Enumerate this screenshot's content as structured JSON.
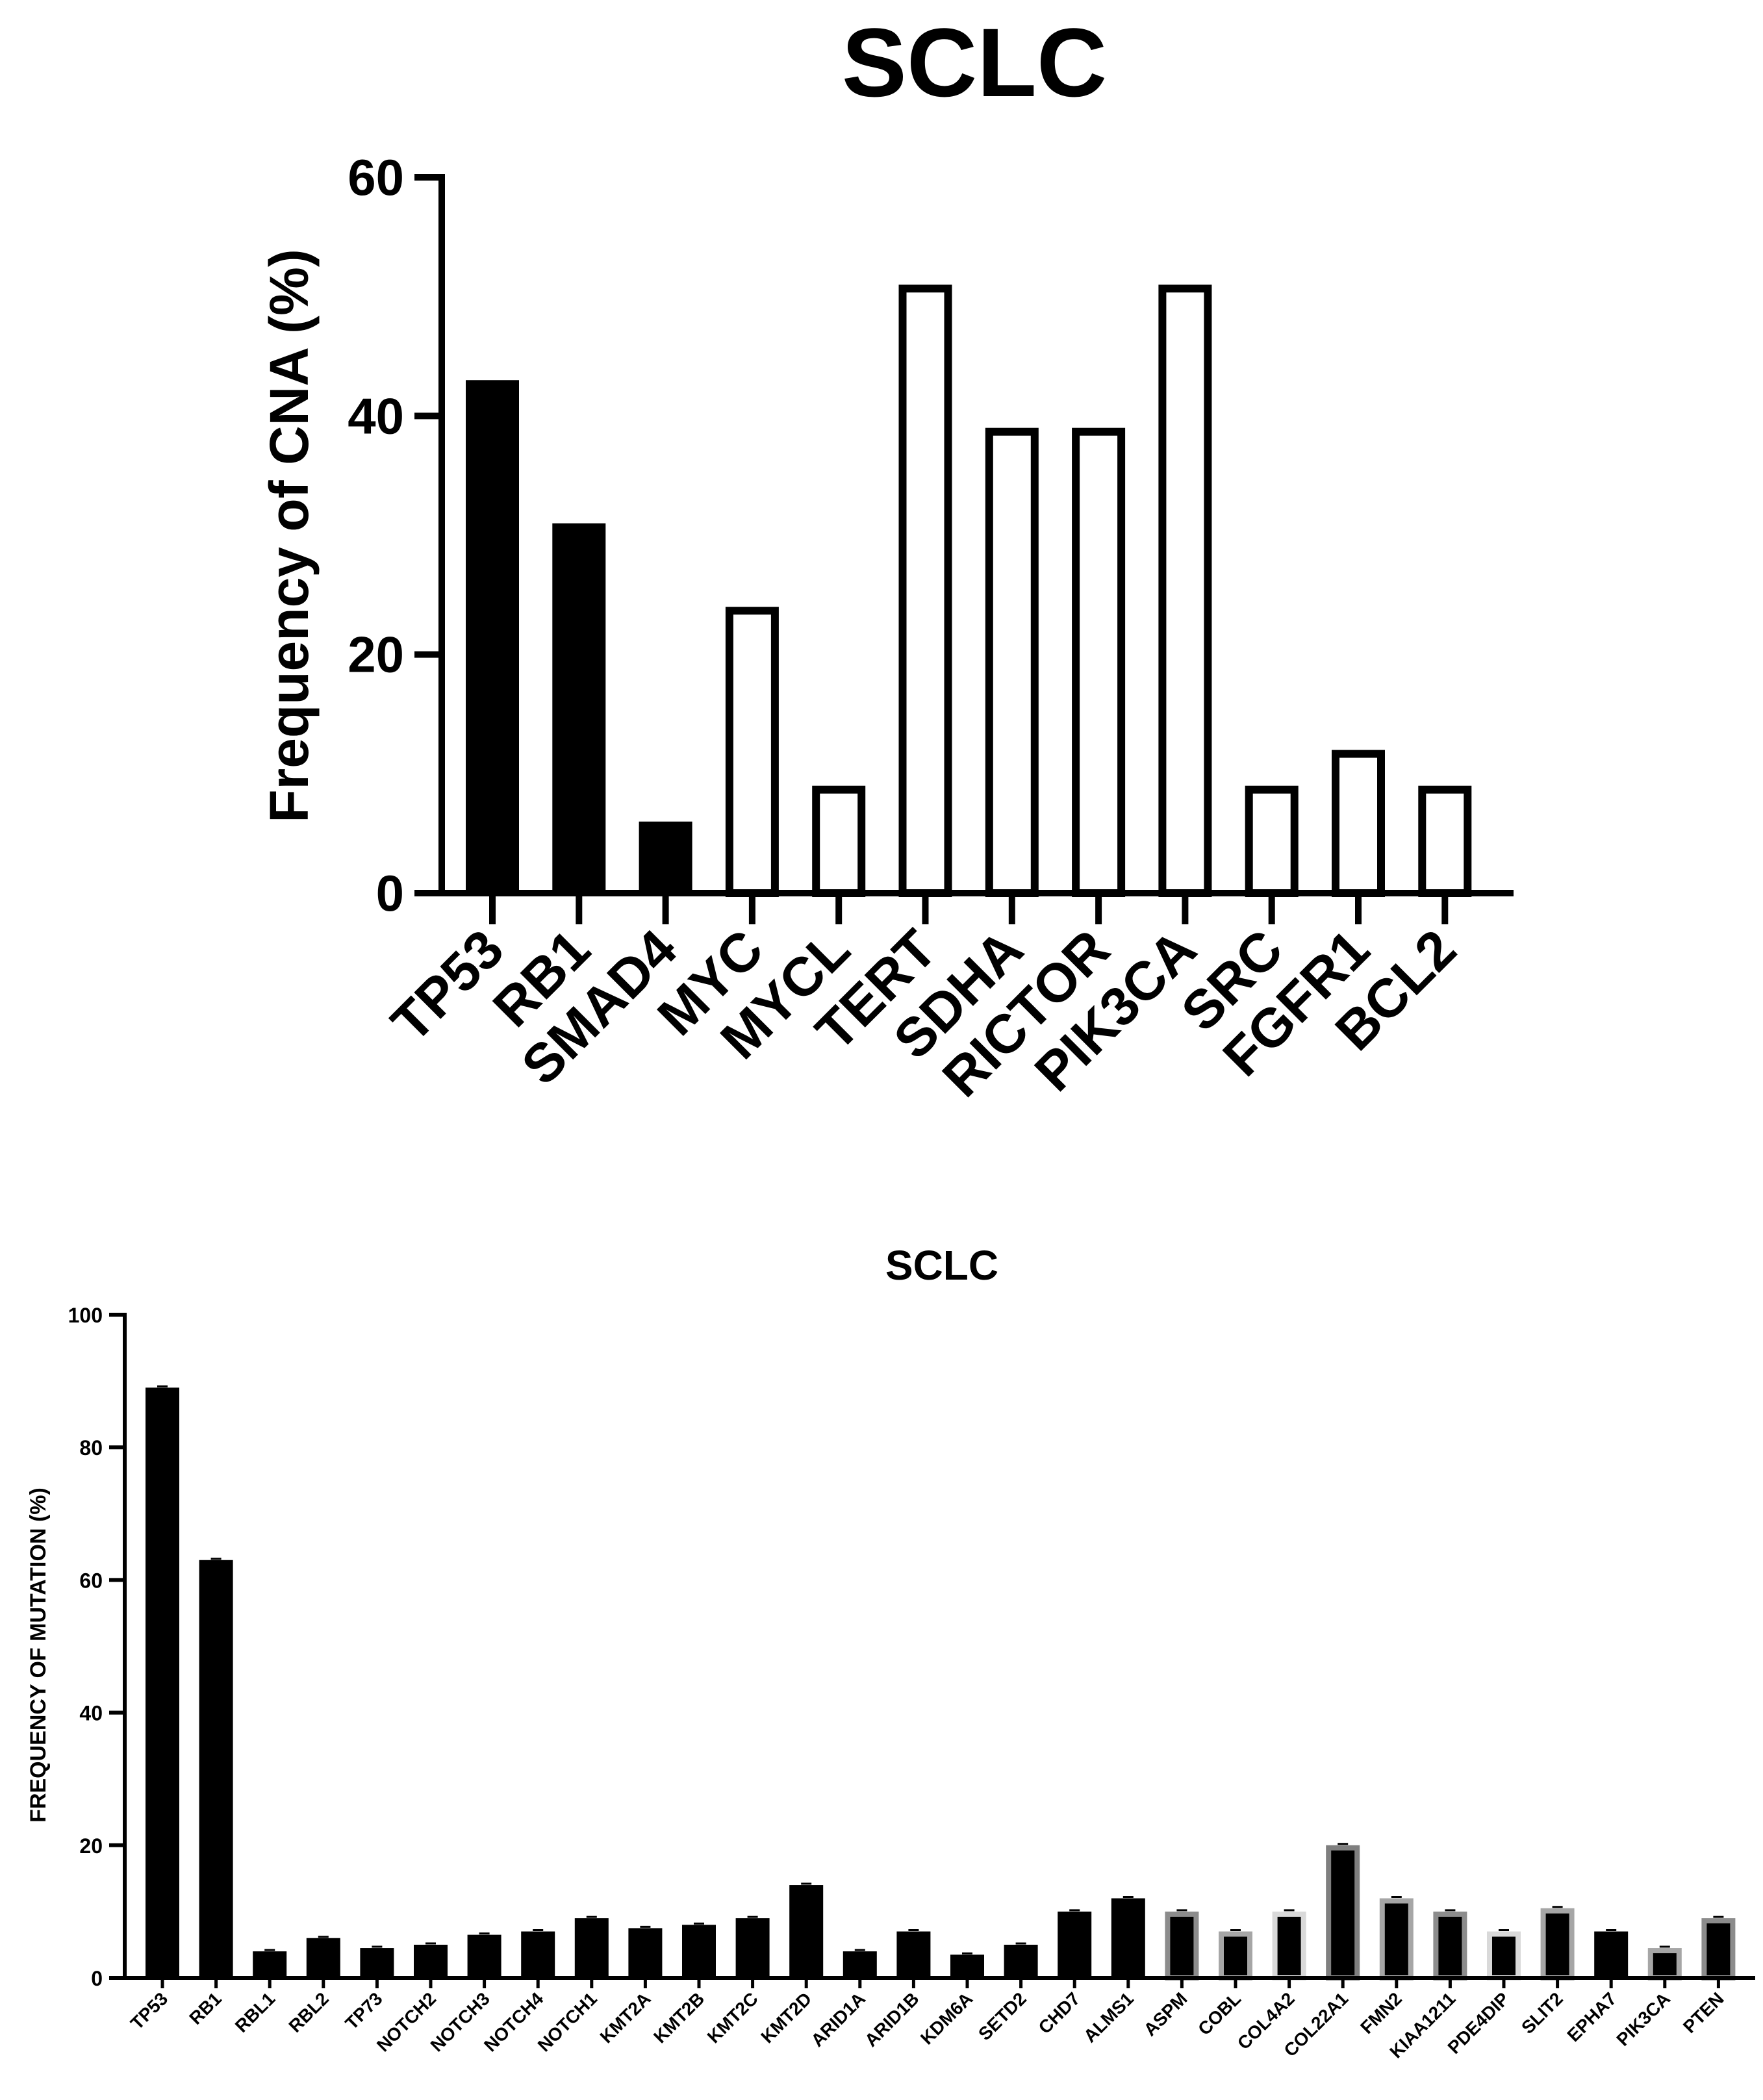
{
  "chart_data": [
    {
      "type": "bar",
      "title": "SCLC",
      "xlabel": "",
      "ylabel": "Frequency of CNA  (%)",
      "ylim": [
        0,
        60
      ],
      "yticks": [
        "0",
        "20",
        "40",
        "60"
      ],
      "grid": false,
      "legend": "none",
      "categories": [
        "TP53",
        "RB1",
        "SMAD4",
        "MYC",
        "MYCL",
        "TERT",
        "SDHA",
        "RICTOR",
        "PIK3CA",
        "SRC",
        "FGFR1",
        "BCL2"
      ],
      "values": [
        43,
        31,
        6,
        24,
        9,
        51,
        39,
        39,
        51,
        9,
        12,
        9
      ],
      "fills": [
        "#000000",
        "#000000",
        "#000000",
        "#ffffff",
        "#ffffff",
        "#ffffff",
        "#ffffff",
        "#ffffff",
        "#ffffff",
        "#ffffff",
        "#ffffff",
        "#ffffff"
      ]
    },
    {
      "type": "bar",
      "title": "SCLC",
      "xlabel": "",
      "ylabel": "FREQUENCY OF MUTATION (%)",
      "ylim": [
        0,
        100
      ],
      "yticks": [
        "0",
        "20",
        "40",
        "60",
        "80",
        "100"
      ],
      "grid": false,
      "legend": "none",
      "categories": [
        "TP53",
        "RB1",
        "RBL1",
        "RBL2",
        "TP73",
        "NOTCH2",
        "NOTCH3",
        "NOTCH4",
        "NOTCH1",
        "KMT2A",
        "KMT2B",
        "KMT2C",
        "KMT2D",
        "ARID1A",
        "ARID1B",
        "KDM6A",
        "SETD2",
        "CHD7",
        "ALMS1",
        "ASPM",
        "COBL",
        "COL4A2",
        "COL22A1",
        "FMN2",
        "KIAA1211",
        "PDE4DIP",
        "SLIT2",
        "EPHA7",
        "PIK3CA",
        "PTEN"
      ],
      "values": [
        89,
        63,
        4,
        6,
        4.5,
        5,
        6.5,
        7,
        9,
        7.5,
        8,
        9,
        14,
        4,
        7,
        3.5,
        5,
        10,
        12,
        10,
        7,
        10,
        20,
        12,
        10,
        7,
        10.5,
        7,
        4.5,
        9
      ],
      "outline_colors": [
        "#000000",
        "#000000",
        "#000000",
        "#000000",
        "#000000",
        "#000000",
        "#000000",
        "#000000",
        "#000000",
        "#000000",
        "#000000",
        "#000000",
        "#000000",
        "#000000",
        "#000000",
        "#000000",
        "#000000",
        "#000000",
        "#000000",
        "#8c8c8c",
        "#a6a6a6",
        "#d9d9d9",
        "#7f7f7f",
        "#a6a6a6",
        "#8c8c8c",
        "#d9d9d9",
        "#a6a6a6",
        "#000000",
        "#a6a6a6",
        "#8c8c8c"
      ]
    }
  ]
}
